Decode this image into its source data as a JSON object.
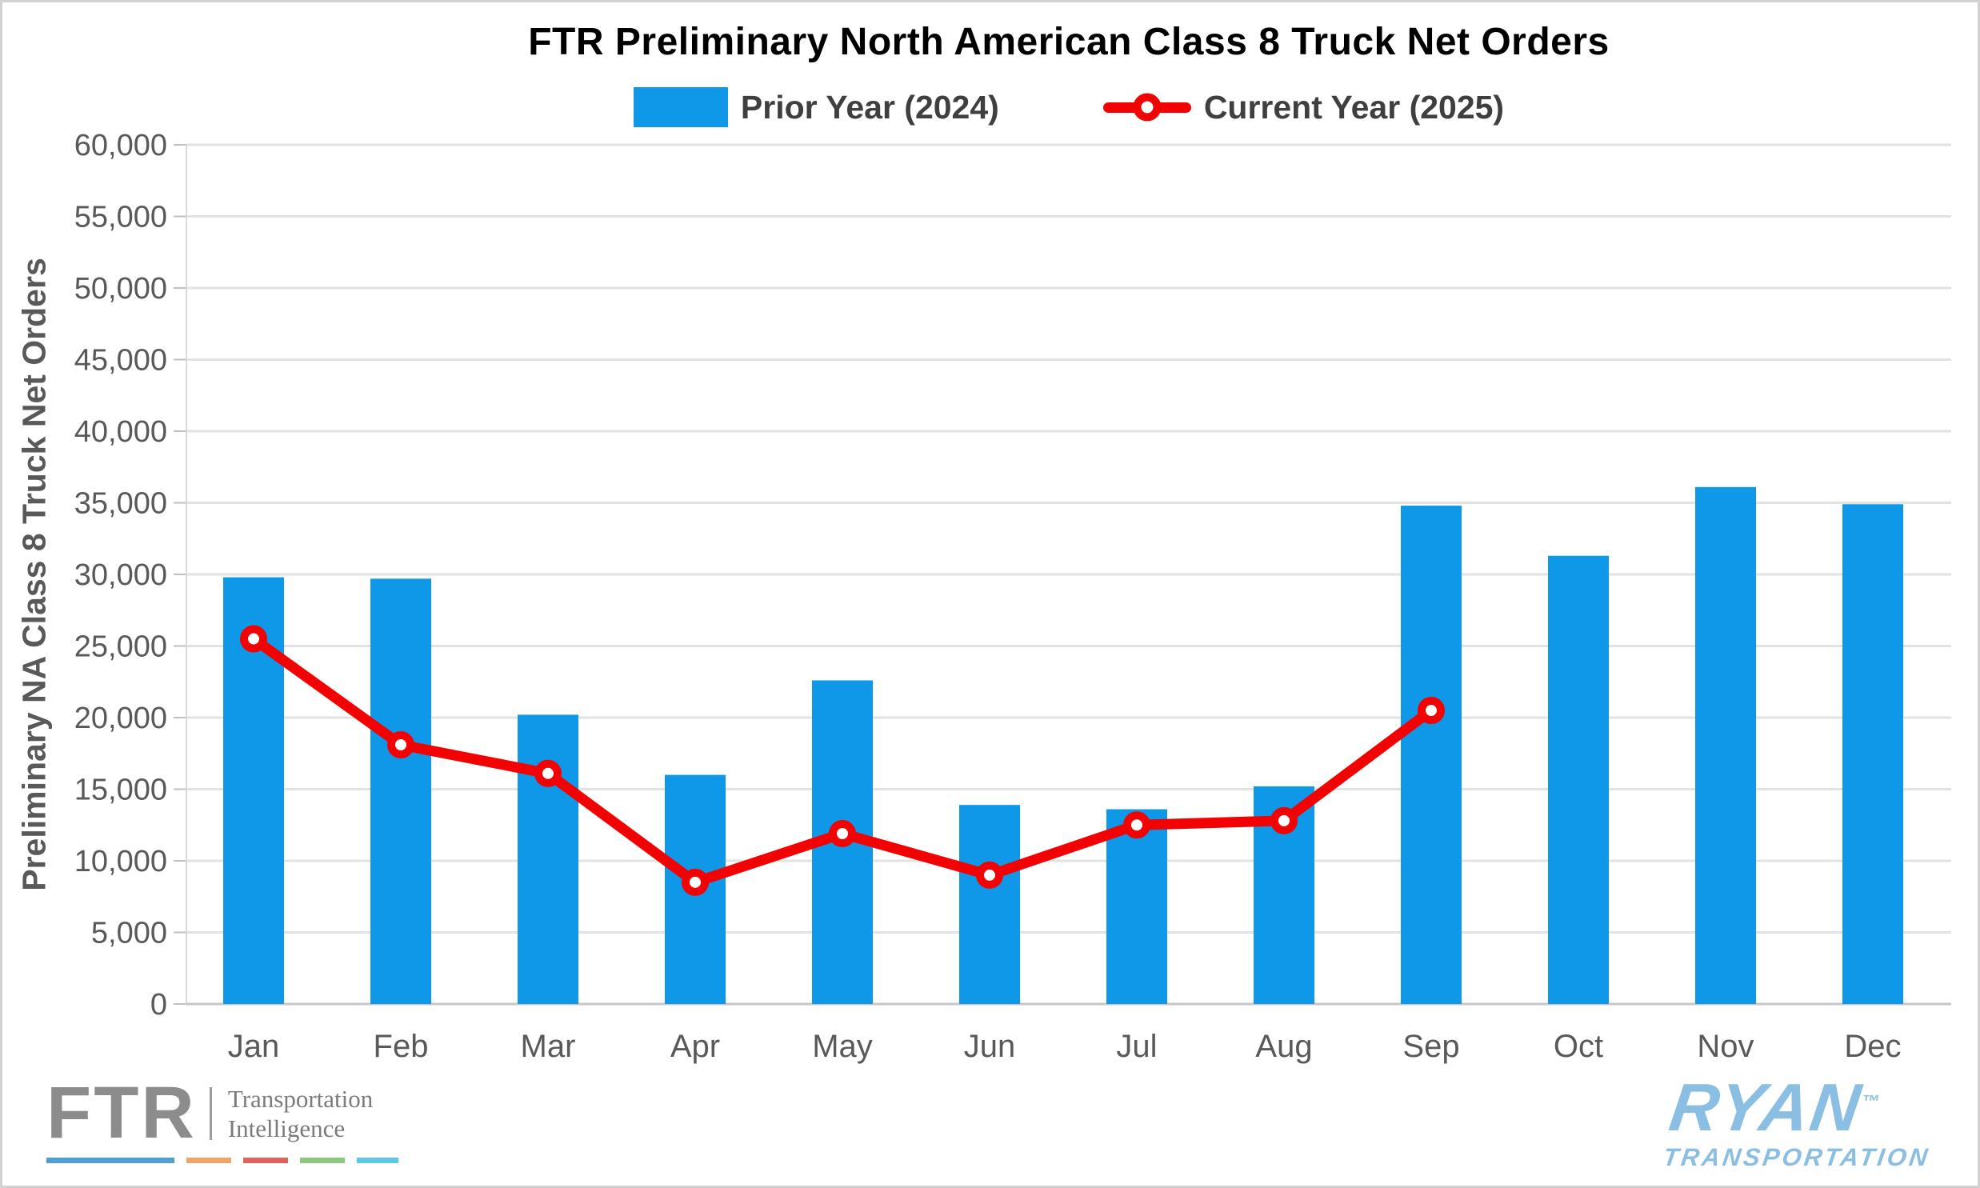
{
  "title": "FTR Preliminary North American Class 8 Truck Net Orders",
  "legend": {
    "prior": {
      "label": "Prior Year (2024)",
      "color": "#0f97e8"
    },
    "current": {
      "label": "Current Year (2025)",
      "color": "#f20202"
    }
  },
  "y_axis": {
    "title": "Preliminary NA Class 8 Truck Net Orders",
    "tick_labels": [
      "60,000",
      "55,000",
      "50,000",
      "45,000",
      "40,000",
      "35,000",
      "30,000",
      "25,000",
      "20,000",
      "15,000",
      "10,000",
      "5,000",
      "0"
    ]
  },
  "x_axis": {
    "labels": [
      "Jan",
      "Feb",
      "Mar",
      "Apr",
      "May",
      "Jun",
      "Jul",
      "Aug",
      "Sep",
      "Oct",
      "Nov",
      "Dec"
    ]
  },
  "chart_data": {
    "type": "bar+line",
    "categories": [
      "Jan",
      "Feb",
      "Mar",
      "Apr",
      "May",
      "Jun",
      "Jul",
      "Aug",
      "Sep",
      "Oct",
      "Nov",
      "Dec"
    ],
    "series": [
      {
        "name": "Prior Year (2024)",
        "type": "bar",
        "color": "#0f97e8",
        "values": [
          29800,
          29700,
          20200,
          16000,
          22600,
          13900,
          13600,
          15200,
          34800,
          31300,
          36100,
          34900
        ]
      },
      {
        "name": "Current Year (2025)",
        "type": "line",
        "color": "#f20202",
        "marker": "open-circle",
        "values": [
          25500,
          18100,
          16100,
          8500,
          11900,
          9000,
          12500,
          12800,
          20500,
          null,
          null,
          null
        ]
      }
    ],
    "title": "FTR Preliminary North American Class 8 Truck Net Orders",
    "xlabel": "",
    "ylabel": "Preliminary NA Class 8 Truck Net Orders",
    "ylim": [
      0,
      60000
    ],
    "ytick_step": 5000,
    "grid": true,
    "legend_position": "top"
  },
  "footer": {
    "ftr": {
      "wordmark": "FTR",
      "tagline": [
        "Transportation",
        "Intelligence"
      ],
      "dash_colors": [
        "#4f9fd4",
        "#f2a369",
        "#e2615c",
        "#8cc97e",
        "#5ec6e6"
      ]
    },
    "ryan": {
      "wordmark": "RYAN",
      "trademark": "™",
      "subtext": "TRANSPORTATION",
      "color": "#8abfe3"
    }
  }
}
